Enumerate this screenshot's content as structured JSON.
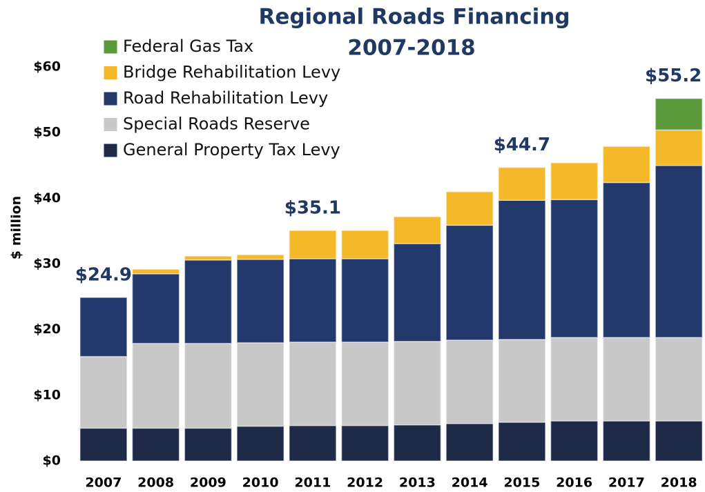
{
  "chart_data": {
    "type": "stacked_bar",
    "title": "Regional Roads Financing",
    "subtitle": "2007-2018",
    "ylabel": "$ million",
    "categories": [
      "2007",
      "2008",
      "2009",
      "2010",
      "2011",
      "2012",
      "2013",
      "2014",
      "2015",
      "2016",
      "2017",
      "2018"
    ],
    "series": [
      {
        "name": "General Property Tax Levy",
        "color": "#1f2a48",
        "values": [
          5.0,
          5.0,
          5.0,
          5.3,
          5.4,
          5.4,
          5.5,
          5.7,
          5.9,
          6.1,
          6.1,
          6.1
        ]
      },
      {
        "name": "Special Roads Reserve",
        "color": "#c8c8c8",
        "values": [
          10.9,
          12.9,
          12.9,
          12.7,
          12.7,
          12.7,
          12.7,
          12.7,
          12.6,
          12.7,
          12.7,
          12.7
        ]
      },
      {
        "name": "Road Rehabilitation Levy",
        "color": "#24396b",
        "values": [
          9.0,
          10.6,
          12.7,
          12.7,
          12.7,
          12.7,
          14.9,
          17.5,
          21.2,
          21.0,
          23.6,
          26.2
        ]
      },
      {
        "name": "Bridge Rehabilitation Levy",
        "color": "#f5b829",
        "values": [
          0,
          0.7,
          0.6,
          0.7,
          4.3,
          4.3,
          4.1,
          5.1,
          5.0,
          5.6,
          5.5,
          5.4
        ]
      },
      {
        "name": "Federal Gas Tax",
        "color": "#5a9a3a",
        "values": [
          0,
          0,
          0,
          0,
          0,
          0,
          0,
          0,
          0,
          0,
          0,
          4.8
        ]
      }
    ],
    "totals": [
      24.9,
      null,
      null,
      null,
      35.1,
      null,
      null,
      null,
      44.7,
      null,
      null,
      55.2
    ],
    "total_labels": [
      "$24.9",
      null,
      null,
      null,
      "$35.1",
      null,
      null,
      null,
      "$44.7",
      null,
      null,
      "$55.2"
    ],
    "ylim": [
      0,
      60
    ],
    "yticks": [
      {
        "value": 0,
        "label": "$0"
      },
      {
        "value": 10,
        "label": "$10"
      },
      {
        "value": 20,
        "label": "$20"
      },
      {
        "value": 30,
        "label": "$30"
      },
      {
        "value": 40,
        "label": "$40"
      },
      {
        "value": 50,
        "label": "$50"
      },
      {
        "value": 60,
        "label": "$60"
      }
    ],
    "grid": false,
    "legend": "top-left"
  }
}
